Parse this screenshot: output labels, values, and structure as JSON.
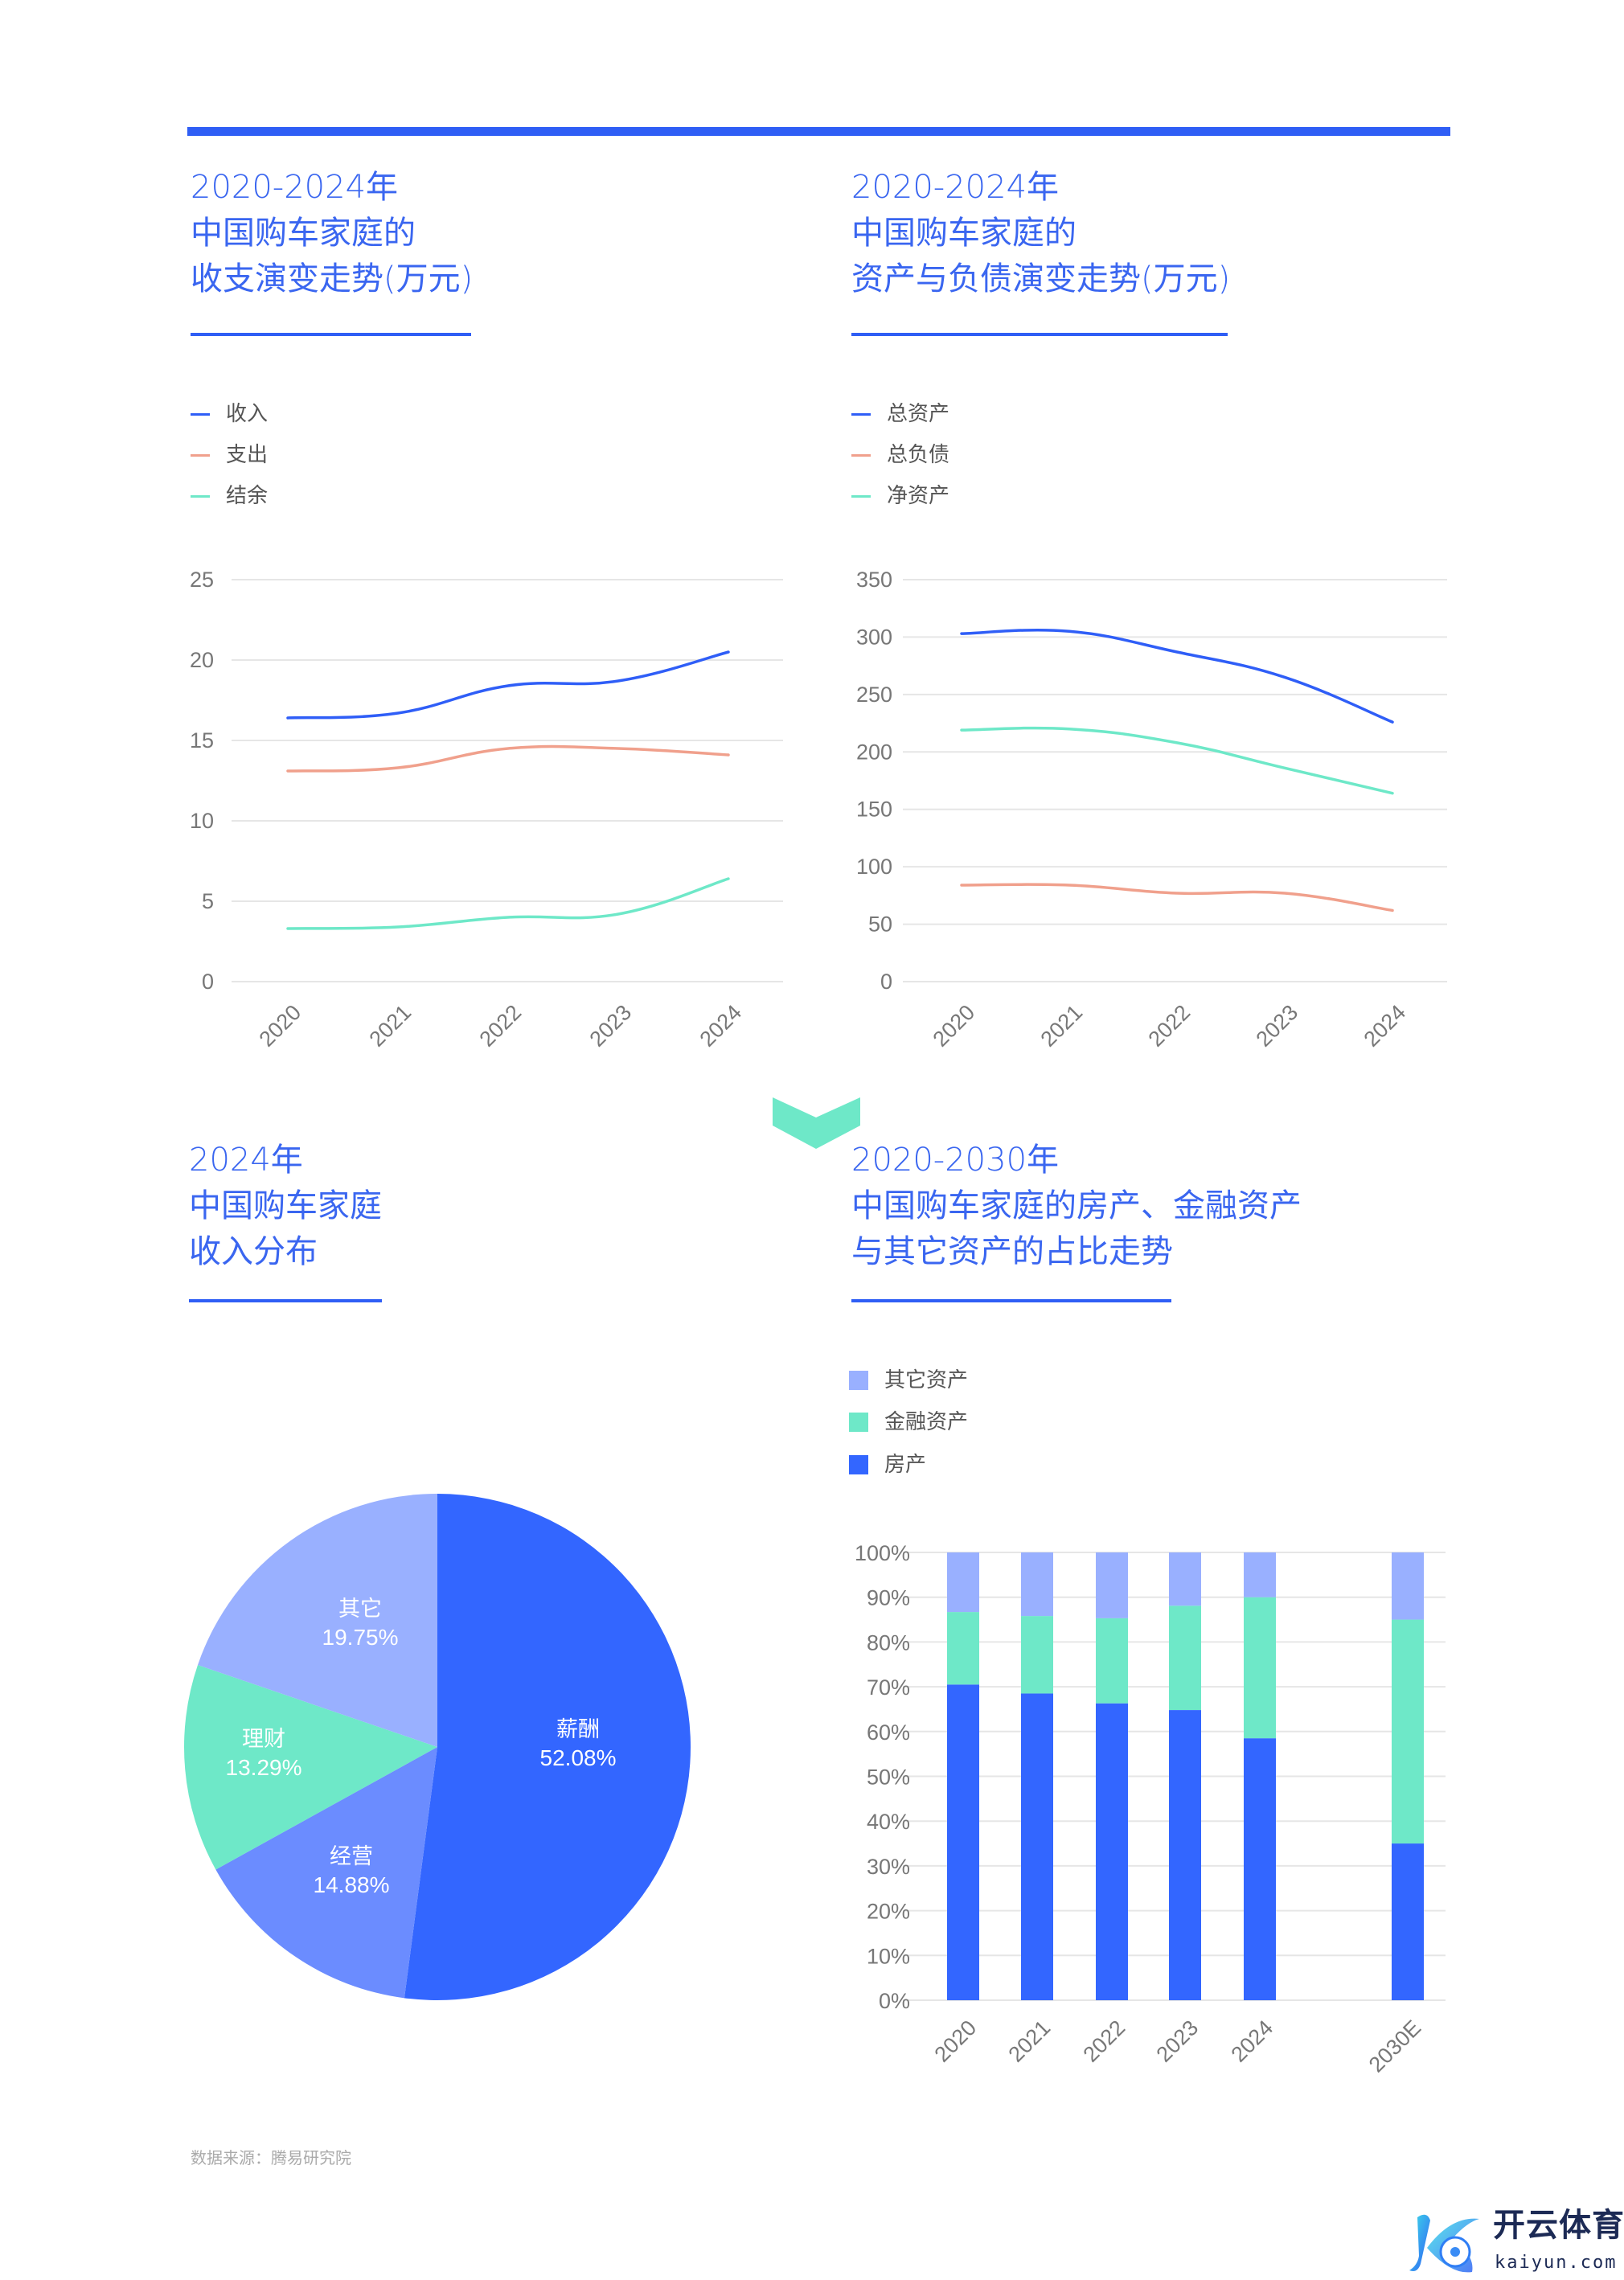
{
  "colors": {
    "accent": "#2f5ef5",
    "income": "#2f5ef7",
    "expense": "#f0a08c",
    "surplus": "#6ee8c8",
    "house": "#3366ff",
    "finance": "#6ee8c8",
    "other": "#99b0ff",
    "pie_business": "#6b8cff"
  },
  "panel1": {
    "title": [
      "2020-2024年",
      "中国购车家庭的",
      "收支演变走势(万元)"
    ]
  },
  "panel2": {
    "title": [
      "2020-2024年",
      "中国购车家庭的",
      "资产与负债演变走势(万元)"
    ]
  },
  "panel3": {
    "title": [
      "2024年",
      "中国购车家庭",
      "收入分布"
    ]
  },
  "panel4": {
    "title": [
      "2020-2030年",
      "中国购车家庭的房产、金融资产",
      "与其它资产的占比走势"
    ]
  },
  "source": "数据来源：腾易研究院",
  "logo": {
    "cn": "开云体育",
    "en": "kaiyun.com"
  },
  "chart_data": [
    {
      "type": "line",
      "title": "2020-2024年中国购车家庭的收支演变走势(万元)",
      "x": [
        "2020",
        "2021",
        "2022",
        "2023",
        "2024"
      ],
      "ylim": [
        0,
        25
      ],
      "yticks": [
        "0",
        "5",
        "10",
        "15",
        "20",
        "25"
      ],
      "legend": "top-left",
      "series": [
        {
          "name": "收入",
          "color": "#2f5ef7",
          "values": [
            16.4,
            16.7,
            18.4,
            18.7,
            20.5
          ]
        },
        {
          "name": "支出",
          "color": "#f0a08c",
          "values": [
            13.1,
            13.3,
            14.5,
            14.5,
            14.1
          ]
        },
        {
          "name": "结余",
          "color": "#6ee8c8",
          "values": [
            3.3,
            3.4,
            4.0,
            4.2,
            6.4
          ]
        }
      ]
    },
    {
      "type": "line",
      "title": "2020-2024年中国购车家庭的资产与负债演变走势(万元)",
      "x": [
        "2020",
        "2021",
        "2022",
        "2023",
        "2024"
      ],
      "ylim": [
        0,
        350
      ],
      "yticks": [
        "0",
        "50",
        "100",
        "150",
        "200",
        "250",
        "300",
        "350"
      ],
      "legend": "top-left",
      "series": [
        {
          "name": "总资产",
          "color": "#2f5ef7",
          "values": [
            303,
            305,
            287,
            265,
            226
          ]
        },
        {
          "name": "总负债",
          "color": "#f0a08c",
          "values": [
            84,
            84,
            77,
            77,
            62
          ]
        },
        {
          "name": "净资产",
          "color": "#6ee8c8",
          "values": [
            219,
            220,
            208,
            186,
            164
          ]
        }
      ]
    },
    {
      "type": "pie",
      "title": "2024年中国购车家庭收入分布",
      "slices": [
        {
          "name": "薪酬",
          "value": 52.08,
          "label": "52.08%",
          "color": "#3366ff"
        },
        {
          "name": "经营",
          "value": 14.88,
          "label": "14.88%",
          "color": "#6b8cff"
        },
        {
          "name": "理财",
          "value": 13.29,
          "label": "13.29%",
          "color": "#6ee8c8"
        },
        {
          "name": "其它",
          "value": 19.75,
          "label": "19.75%",
          "color": "#99b0ff"
        }
      ]
    },
    {
      "type": "bar",
      "stacked": true,
      "title": "2020-2030年中国购车家庭的房产、金融资产与其它资产的占比走势",
      "categories": [
        "2020",
        "2021",
        "2022",
        "2023",
        "2024",
        "2030E"
      ],
      "ylim": [
        0,
        100
      ],
      "yticks": [
        "0%",
        "10%",
        "20%",
        "30%",
        "40%",
        "50%",
        "60%",
        "70%",
        "80%",
        "90%",
        "100%"
      ],
      "legend": "top-left",
      "legend_order": [
        "其它资产",
        "金融资产",
        "房产"
      ],
      "series": [
        {
          "name": "房产",
          "color": "#3366ff",
          "values": [
            70.5,
            68.5,
            66.3,
            64.8,
            58.5,
            35
          ]
        },
        {
          "name": "金融资产",
          "color": "#6ee8c8",
          "values": [
            16.2,
            17.3,
            19.0,
            23.3,
            31.5,
            50
          ]
        },
        {
          "name": "其它资产",
          "color": "#99b0ff",
          "values": [
            13.3,
            14.2,
            14.7,
            11.9,
            10.0,
            15
          ]
        }
      ]
    }
  ]
}
